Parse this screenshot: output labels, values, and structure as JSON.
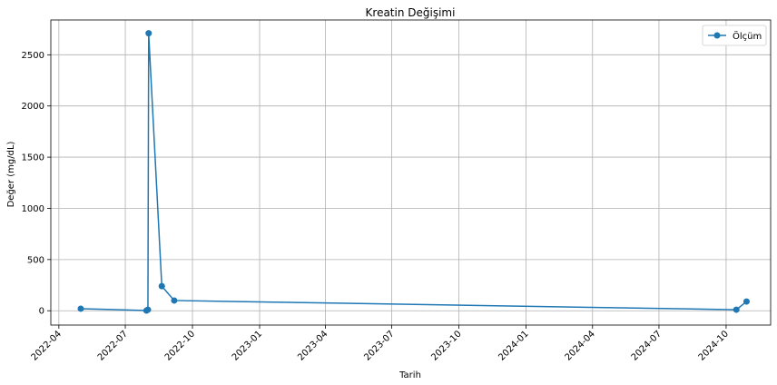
{
  "chart_data": {
    "type": "line",
    "title": "Kreatin Değişimi",
    "xlabel": "Tarih",
    "ylabel": "Değer (mg/dL)",
    "x_ticks": [
      "2022-04",
      "2022-07",
      "2022-10",
      "2023-01",
      "2023-04",
      "2023-07",
      "2023-10",
      "2024-01",
      "2024-04",
      "2024-07",
      "2024-10"
    ],
    "y_ticks": [
      0,
      500,
      1000,
      1500,
      2000,
      2500
    ],
    "ylim": [
      -140,
      2840
    ],
    "xlim": [
      "2022-03-21",
      "2024-12-01"
    ],
    "grid": true,
    "legend_position": "top-right",
    "series": [
      {
        "name": "Ölçüm",
        "color": "#1f77b4",
        "marker": "circle",
        "points": [
          {
            "x": "2022-05-01",
            "y": 20
          },
          {
            "x": "2022-07-30",
            "y": 2
          },
          {
            "x": "2022-08-01",
            "y": 10
          },
          {
            "x": "2022-08-02",
            "y": 2710
          },
          {
            "x": "2022-08-20",
            "y": 240
          },
          {
            "x": "2022-09-06",
            "y": 100
          },
          {
            "x": "2024-10-15",
            "y": 10
          },
          {
            "x": "2024-10-29",
            "y": 90
          }
        ]
      }
    ]
  }
}
